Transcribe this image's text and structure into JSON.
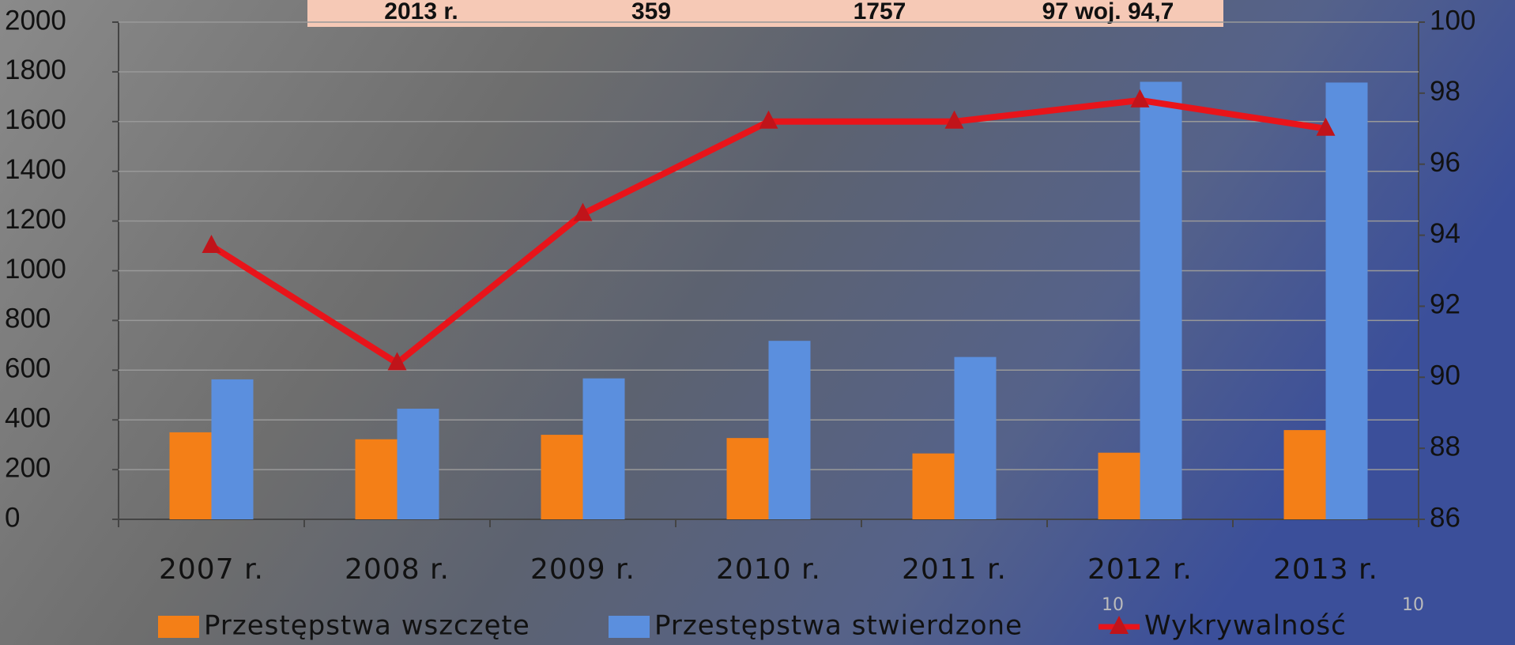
{
  "chart_data": {
    "type": "bar",
    "table_row": [
      "2013 r.",
      "359",
      "1757",
      "97 woj. 94,7"
    ],
    "categories": [
      "2007 r.",
      "2008 r.",
      "2009 r.",
      "2010 r.",
      "2011 r.",
      "2012 r.",
      "2013 r."
    ],
    "series": [
      {
        "name": "Przestępstwa wszczęte",
        "type": "bar",
        "color": "#f47f17",
        "values": [
          350,
          322,
          340,
          327,
          265,
          268,
          359
        ]
      },
      {
        "name": "Przestępstwa stwierdzone",
        "type": "bar",
        "color": "#5b8fde",
        "values": [
          563,
          445,
          567,
          718,
          653,
          1760,
          1757
        ]
      },
      {
        "name": "Wykrywalność",
        "type": "line",
        "axis": "y2",
        "color": "#e8141a",
        "values": [
          93.7,
          90.4,
          94.6,
          97.2,
          97.2,
          97.8,
          97.0
        ]
      }
    ],
    "ylim": [
      0,
      2000
    ],
    "yticks": [
      0,
      200,
      400,
      600,
      800,
      1000,
      1200,
      1400,
      1600,
      1800,
      2000
    ],
    "y2lim": [
      86,
      100
    ],
    "y2ticks": [
      86,
      88,
      90,
      92,
      94,
      96,
      98,
      100
    ],
    "grid": true,
    "legend": "bottom",
    "annotations": [
      "10",
      "10"
    ]
  }
}
